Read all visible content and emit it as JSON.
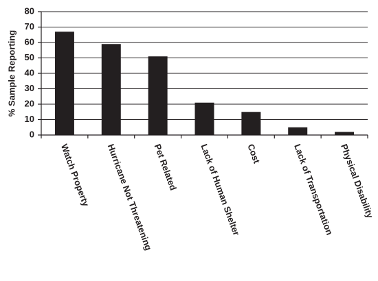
{
  "chart_data": {
    "type": "bar",
    "y_label": "% Sample Reporting",
    "categories": [
      "Watch Property",
      "Hurricane Not Threatening",
      "Pet Related",
      "Lack of Human Shelter",
      "Cost",
      "Lack of Transportation",
      "Physical Disability"
    ],
    "values": [
      67,
      59,
      51,
      21,
      15,
      5,
      2
    ],
    "color": "#231f20",
    "ylim": [
      0,
      80
    ],
    "yticks": [
      0,
      10,
      20,
      30,
      40,
      50,
      60,
      70,
      80
    ],
    "grid": true
  }
}
